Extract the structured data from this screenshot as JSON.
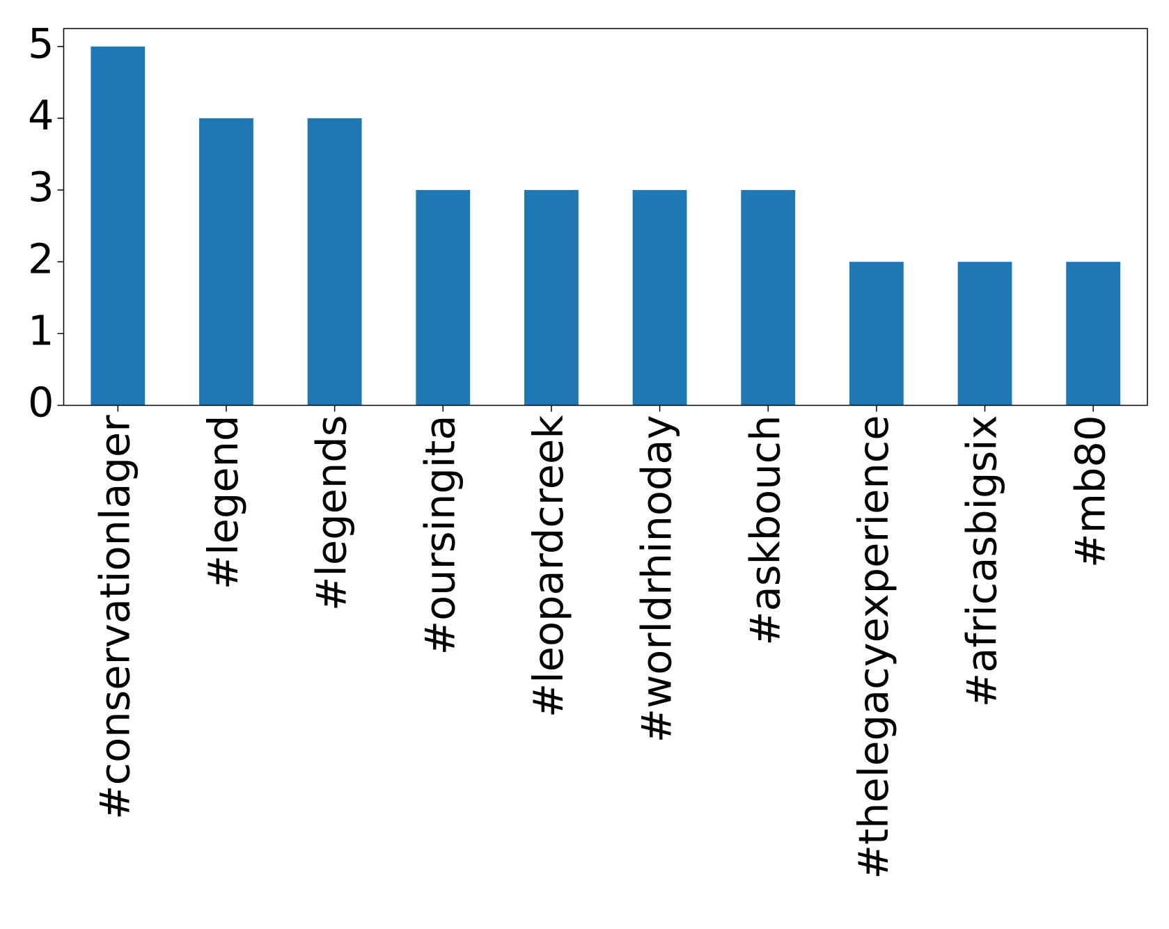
{
  "chart_data": {
    "type": "bar",
    "categories": [
      "#conservationlager",
      "#legend",
      "#legends",
      "#oursingita",
      "#leopardcreek",
      "#worldrhinoday",
      "#askbouch",
      "#thelegacyexperience",
      "#africasbigsix",
      "#mb80"
    ],
    "values": [
      5,
      4,
      4,
      3,
      3,
      3,
      3,
      2,
      2,
      2
    ],
    "color": "#1f77b4",
    "ylim": [
      0,
      5.25
    ],
    "yticks": [
      0,
      1,
      2,
      3,
      4,
      5
    ],
    "grid": false
  }
}
